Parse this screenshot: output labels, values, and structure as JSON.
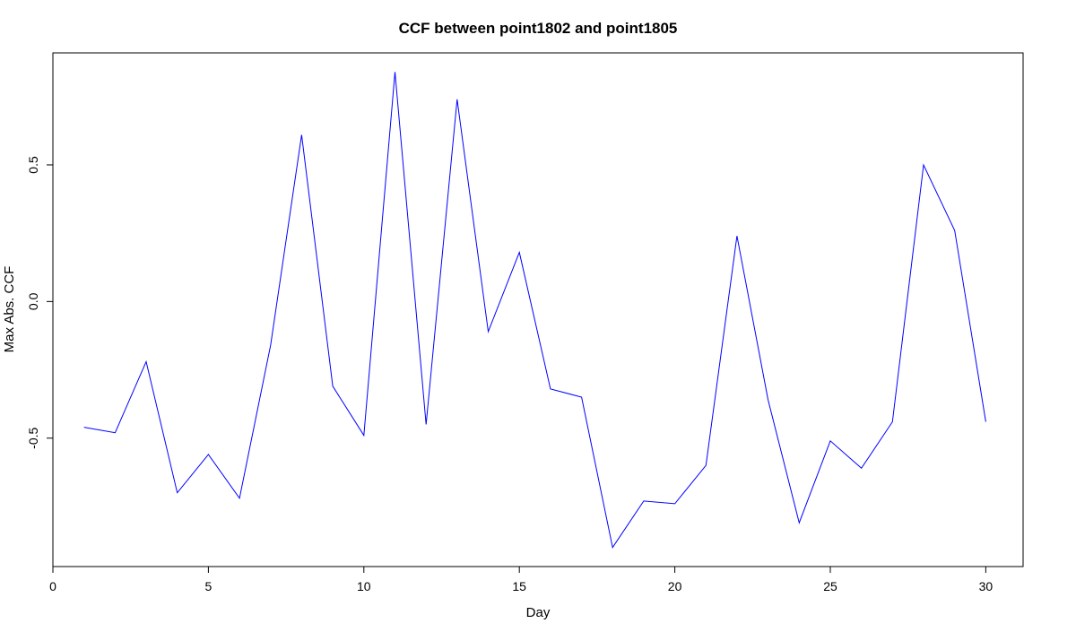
{
  "chart_data": {
    "type": "line",
    "title": "CCF between  point1802 and point1805",
    "xlabel": "Day",
    "ylabel": "Max Abs. CCF",
    "xlim": [
      0,
      31.2
    ],
    "ylim": [
      -0.97,
      0.91
    ],
    "x_ticks": [
      0,
      5,
      10,
      15,
      20,
      25,
      30
    ],
    "x_tick_labels": [
      "0",
      "5",
      "10",
      "15",
      "20",
      "25",
      "30"
    ],
    "y_ticks": [
      -0.5,
      0.0,
      0.5
    ],
    "y_tick_labels": [
      "-0.5",
      "0.0",
      "0.5"
    ],
    "grid": false,
    "series": [
      {
        "color": "#0000ff",
        "x": [
          1,
          2,
          3,
          4,
          5,
          6,
          7,
          8,
          9,
          10,
          11,
          12,
          13,
          14,
          15,
          16,
          17,
          18,
          19,
          20,
          21,
          22,
          23,
          24,
          25,
          26,
          27,
          28,
          29,
          30
        ],
        "values": [
          -0.46,
          -0.48,
          -0.22,
          -0.7,
          -0.56,
          -0.72,
          -0.16,
          0.61,
          -0.31,
          -0.49,
          0.84,
          -0.45,
          0.74,
          -0.11,
          0.18,
          -0.32,
          -0.35,
          -0.9,
          -0.73,
          -0.74,
          -0.6,
          0.24,
          -0.36,
          -0.81,
          -0.51,
          -0.61,
          -0.44,
          0.5,
          0.26,
          -0.44
        ]
      }
    ]
  }
}
